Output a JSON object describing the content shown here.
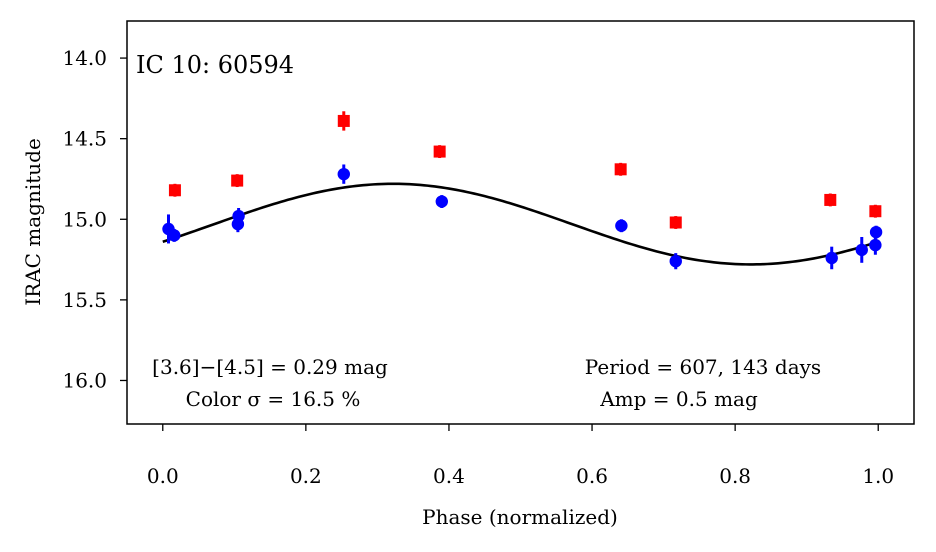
{
  "chart_data": {
    "type": "scatter",
    "title": "IC 10:  60594",
    "xlabel": "Phase (normalized)",
    "ylabel": "IRAC magnitude",
    "xlim": [
      -0.05,
      1.05
    ],
    "ylim": [
      16.27,
      13.77
    ],
    "y_inverted": true,
    "grid": false,
    "xticks": [
      {
        "value": 0.0,
        "label": "0.0"
      },
      {
        "value": 0.2,
        "label": "0.2"
      },
      {
        "value": 0.4,
        "label": "0.4"
      },
      {
        "value": 0.6,
        "label": "0.6"
      },
      {
        "value": 0.8,
        "label": "0.8"
      },
      {
        "value": 1.0,
        "label": "1.0"
      }
    ],
    "yticks": [
      {
        "value": 14.0,
        "label": "14.0"
      },
      {
        "value": 14.5,
        "label": "14.5"
      },
      {
        "value": 15.0,
        "label": "15.0"
      },
      {
        "value": 15.5,
        "label": "15.5"
      },
      {
        "value": 16.0,
        "label": "16.0"
      }
    ],
    "series": [
      {
        "color": "#ff0000",
        "marker": "square",
        "points": [
          {
            "x": 0.017,
            "y": 14.82,
            "err": 0.04
          },
          {
            "x": 0.104,
            "y": 14.76,
            "err": 0.04
          },
          {
            "x": 0.253,
            "y": 14.39,
            "err": 0.06
          },
          {
            "x": 0.387,
            "y": 14.58,
            "err": 0.04
          },
          {
            "x": 0.64,
            "y": 14.69,
            "err": 0.04
          },
          {
            "x": 0.717,
            "y": 15.02,
            "err": 0.04
          },
          {
            "x": 0.933,
            "y": 14.88,
            "err": 0.04
          },
          {
            "x": 0.996,
            "y": 14.95,
            "err": 0.04
          }
        ]
      },
      {
        "color": "#0000ff",
        "marker": "circle",
        "points": [
          {
            "x": 0.008,
            "y": 15.06,
            "err": 0.09
          },
          {
            "x": 0.016,
            "y": 15.1,
            "err": 0.04
          },
          {
            "x": 0.105,
            "y": 15.03,
            "err": 0.05
          },
          {
            "x": 0.106,
            "y": 14.98,
            "err": 0.05
          },
          {
            "x": 0.253,
            "y": 14.72,
            "err": 0.06
          },
          {
            "x": 0.39,
            "y": 14.89,
            "err": 0.04
          },
          {
            "x": 0.641,
            "y": 15.04,
            "err": 0.04
          },
          {
            "x": 0.717,
            "y": 15.26,
            "err": 0.05
          },
          {
            "x": 0.935,
            "y": 15.24,
            "err": 0.07
          },
          {
            "x": 0.977,
            "y": 15.19,
            "err": 0.08
          },
          {
            "x": 0.996,
            "y": 15.16,
            "err": 0.06
          },
          {
            "x": 0.997,
            "y": 15.08,
            "err": 0.04
          }
        ]
      }
    ],
    "model_curve": {
      "color": "#000000",
      "type": "sinusoid",
      "mean": 15.03,
      "amplitude": 0.25,
      "peak_phase": 0.322
    },
    "annotations": {
      "color_line1": "[3.6]−[4.5] = 0.29 mag",
      "color_line2": "Color σ = 16.5 %",
      "period_line1": "Period = 607, 143 days",
      "period_line2": "Amp = 0.5 mag"
    }
  }
}
